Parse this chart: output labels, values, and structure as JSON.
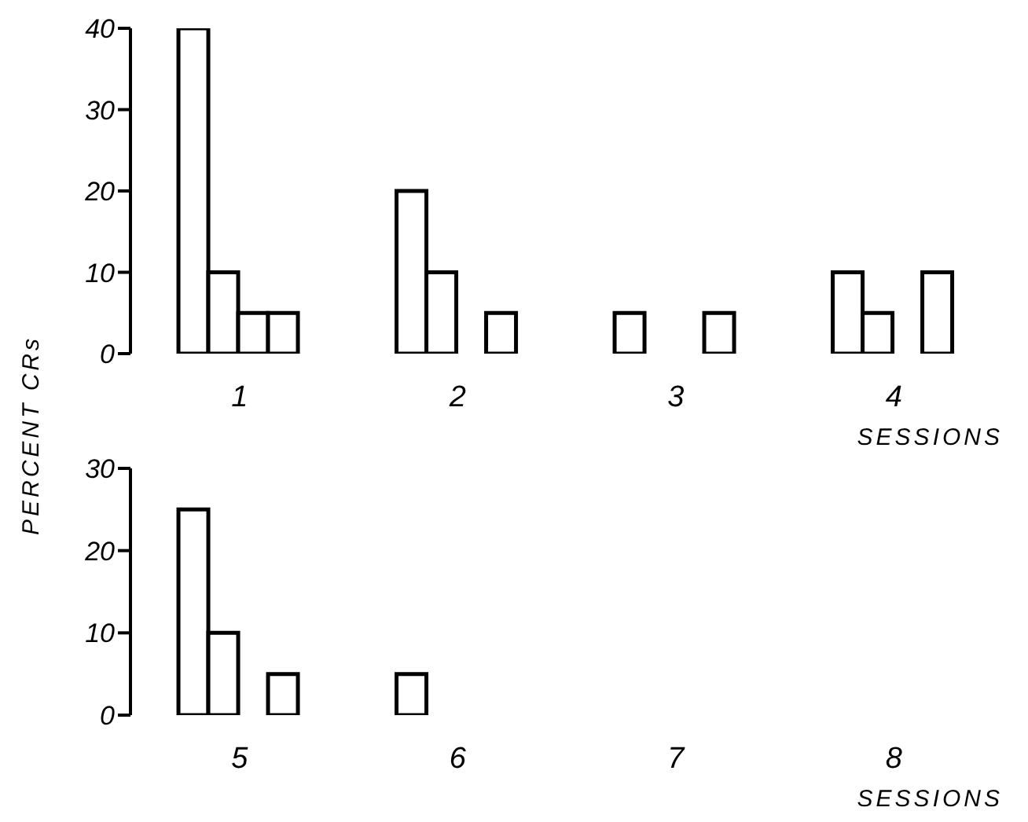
{
  "chart_data": [
    {
      "type": "bar",
      "xlabel": "SESSIONS",
      "ylabel": "PERCENT CRs",
      "categories": [
        "1",
        "2",
        "3",
        "4"
      ],
      "ylim": [
        0,
        40
      ],
      "yticks": [
        0,
        10,
        20,
        30,
        40
      ],
      "series": [
        {
          "color": "#ffffff",
          "values": [
            40,
            20,
            5,
            10
          ]
        },
        {
          "color": "#ffffff",
          "values": [
            10,
            10,
            0,
            5
          ]
        },
        {
          "color": "#ffffff",
          "values": [
            5,
            0,
            0,
            0
          ]
        },
        {
          "color": "#ffffff",
          "values": [
            5,
            5,
            5,
            10
          ]
        }
      ]
    },
    {
      "type": "bar",
      "xlabel": "SESSIONS",
      "categories": [
        "5",
        "6",
        "7",
        "8"
      ],
      "ylim": [
        0,
        30
      ],
      "yticks": [
        0,
        10,
        20,
        30
      ],
      "series": [
        {
          "color": "#ffffff",
          "values": [
            25,
            5,
            0,
            0
          ]
        },
        {
          "color": "#ffffff",
          "values": [
            10,
            0,
            0,
            0
          ]
        },
        {
          "color": "#ffffff",
          "values": [
            0,
            0,
            0,
            0
          ]
        },
        {
          "color": "#ffffff",
          "values": [
            5,
            0,
            0,
            0
          ]
        }
      ]
    }
  ]
}
